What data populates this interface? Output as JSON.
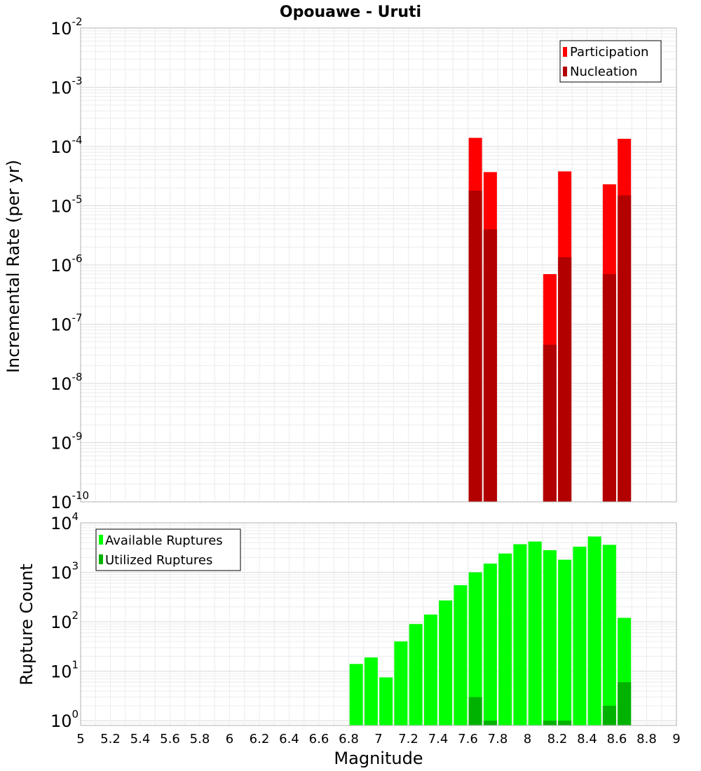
{
  "chart_data": [
    {
      "type": "bar",
      "title": "Opouawe - Uruti",
      "xlabel": "Magnitude",
      "ylabel": "Incremental Rate (per yr)",
      "yscale": "log",
      "xlim": [
        5,
        9
      ],
      "ylim": [
        1e-10,
        0.01
      ],
      "ytick_exponents": [
        -10,
        -9,
        -8,
        -7,
        -6,
        -5,
        -4,
        -3,
        -2
      ],
      "legend": {
        "position": "top-right",
        "entries": [
          "Participation",
          "Nucleation"
        ]
      },
      "colors": {
        "Participation": "#ff0000",
        "Nucleation": "#b20000"
      },
      "series": [
        {
          "name": "Participation",
          "x": [
            7.65,
            7.75,
            8.15,
            8.25,
            8.55,
            8.65
          ],
          "values": [
            0.00014,
            3.7e-05,
            7e-07,
            3.8e-05,
            2.3e-05,
            0.000135
          ]
        },
        {
          "name": "Nucleation",
          "x": [
            7.65,
            7.75,
            8.15,
            8.25,
            8.55,
            8.65
          ],
          "values": [
            1.8e-05,
            4e-06,
            4.5e-08,
            1.35e-06,
            7e-07,
            1.5e-05
          ]
        }
      ]
    },
    {
      "type": "bar",
      "title": "",
      "xlabel": "Magnitude",
      "ylabel": "Rupture Count",
      "yscale": "log",
      "xlim": [
        5,
        9
      ],
      "ylim": [
        0.8,
        10000
      ],
      "ytick_exponents": [
        0,
        1,
        2,
        3,
        4
      ],
      "xticks": [
        "5",
        "5.2",
        "5.4",
        "5.6",
        "5.8",
        "6",
        "6.2",
        "6.4",
        "6.6",
        "6.8",
        "7",
        "7.2",
        "7.4",
        "7.6",
        "7.8",
        "8",
        "8.2",
        "8.4",
        "8.6",
        "8.8",
        "9"
      ],
      "legend": {
        "position": "top-left",
        "entries": [
          "Available Ruptures",
          "Utilized Ruptures"
        ]
      },
      "colors": {
        "Available Ruptures": "#00ff00",
        "Utilized Ruptures": "#00b200"
      },
      "series": [
        {
          "name": "Available Ruptures",
          "x": [
            6.85,
            6.95,
            7.05,
            7.15,
            7.25,
            7.35,
            7.45,
            7.55,
            7.65,
            7.75,
            7.85,
            7.95,
            8.05,
            8.15,
            8.25,
            8.35,
            8.45,
            8.55,
            8.65
          ],
          "values": [
            14,
            19,
            7.5,
            40,
            90,
            140,
            270,
            550,
            1000,
            1500,
            2400,
            3700,
            4200,
            2800,
            1800,
            3300,
            5300,
            3600,
            120
          ]
        },
        {
          "name": "Utilized Ruptures",
          "x": [
            7.65,
            7.75,
            8.15,
            8.25,
            8.55,
            8.65
          ],
          "values": [
            3,
            1,
            1,
            1,
            2,
            6
          ]
        }
      ]
    }
  ]
}
